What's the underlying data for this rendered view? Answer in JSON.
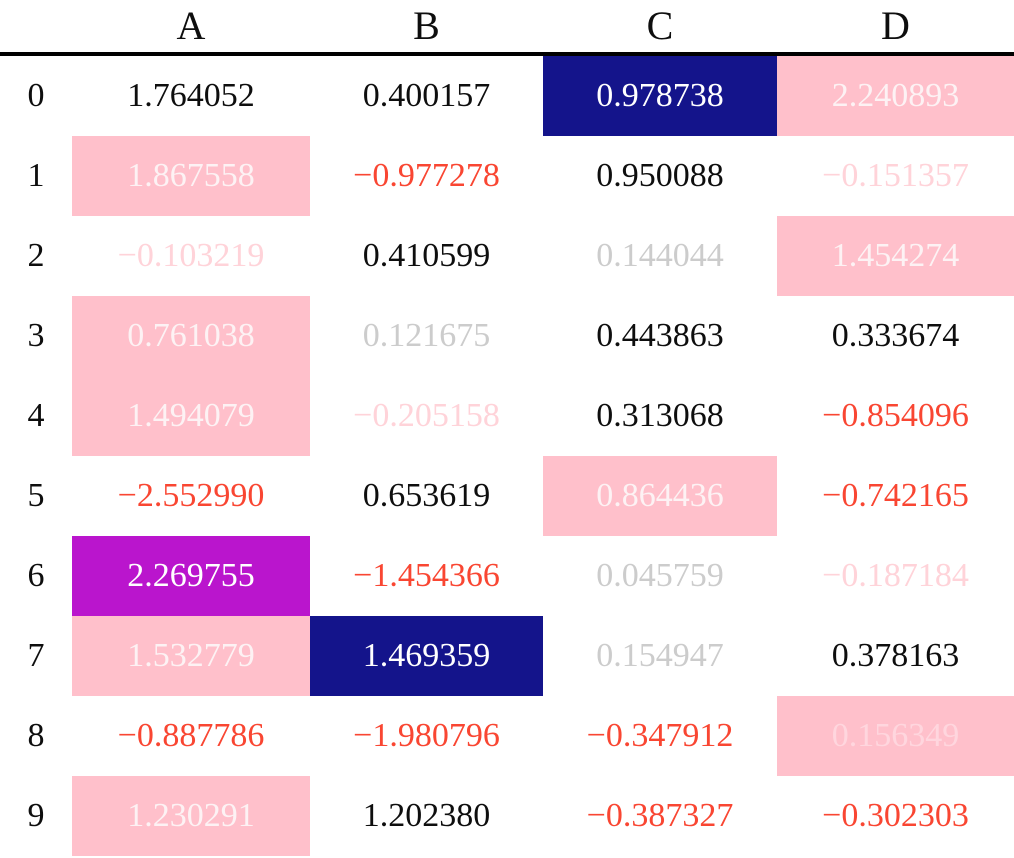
{
  "palette": {
    "black": "#0e0e0e",
    "red": "#f94632",
    "lightgray": "#cccccc",
    "lightpink": "#ffd3d9",
    "white": "#ffffff",
    "pinkwhite": "#fdf2f4",
    "fadedpink": "#ffd6de",
    "pink_bg": "#ffc0cb",
    "navy_bg": "#14148b",
    "magenta_bg": "#ba15cd",
    "rule": "#000000"
  },
  "chart_data": {
    "type": "table",
    "title": "",
    "columns": [
      "A",
      "B",
      "C",
      "D"
    ],
    "index": [
      "0",
      "1",
      "2",
      "3",
      "4",
      "5",
      "6",
      "7",
      "8",
      "9"
    ],
    "values": [
      [
        1.764052,
        0.400157,
        0.978738,
        2.240893
      ],
      [
        1.867558,
        -0.977278,
        0.950088,
        -0.151357
      ],
      [
        -0.103219,
        0.410599,
        0.144044,
        1.454274
      ],
      [
        0.761038,
        0.121675,
        0.443863,
        0.333674
      ],
      [
        1.494079,
        -0.205158,
        0.313068,
        -0.854096
      ],
      [
        -2.55299,
        0.653619,
        0.864436,
        -0.742165
      ],
      [
        2.269755,
        -1.454366,
        0.045759,
        -0.187184
      ],
      [
        1.532779,
        1.469359,
        0.154947,
        0.378163
      ],
      [
        -0.887786,
        -1.980796,
        -0.347912,
        0.156349
      ],
      [
        1.230291,
        1.20238,
        -0.387327,
        -0.302303
      ]
    ],
    "legend": "cell text color encodes sign/magnitude (red = strong negative, light pink = weak negative, light gray = weak positive, black = positive); cell background highlights (navy, magenta, pink) mark emphasized values"
  },
  "cells": [
    [
      {
        "text": "1.764052",
        "fg": "black",
        "bg": null
      },
      {
        "text": "0.400157",
        "fg": "black",
        "bg": null
      },
      {
        "text": "0.978738",
        "fg": "white",
        "bg": "navy_bg"
      },
      {
        "text": "2.240893",
        "fg": "pinkwhite",
        "bg": "pink_bg"
      }
    ],
    [
      {
        "text": "1.867558",
        "fg": "pinkwhite",
        "bg": "pink_bg"
      },
      {
        "text": "−0.977278",
        "fg": "red",
        "bg": null
      },
      {
        "text": "0.950088",
        "fg": "black",
        "bg": null
      },
      {
        "text": "−0.151357",
        "fg": "lightpink",
        "bg": null
      }
    ],
    [
      {
        "text": "−0.103219",
        "fg": "lightpink",
        "bg": null
      },
      {
        "text": "0.410599",
        "fg": "black",
        "bg": null
      },
      {
        "text": "0.144044",
        "fg": "lightgray",
        "bg": null
      },
      {
        "text": "1.454274",
        "fg": "pinkwhite",
        "bg": "pink_bg"
      }
    ],
    [
      {
        "text": "0.761038",
        "fg": "pinkwhite",
        "bg": "pink_bg"
      },
      {
        "text": "0.121675",
        "fg": "lightgray",
        "bg": null
      },
      {
        "text": "0.443863",
        "fg": "black",
        "bg": null
      },
      {
        "text": "0.333674",
        "fg": "black",
        "bg": null
      }
    ],
    [
      {
        "text": "1.494079",
        "fg": "pinkwhite",
        "bg": "pink_bg"
      },
      {
        "text": "−0.205158",
        "fg": "lightpink",
        "bg": null
      },
      {
        "text": "0.313068",
        "fg": "black",
        "bg": null
      },
      {
        "text": "−0.854096",
        "fg": "red",
        "bg": null
      }
    ],
    [
      {
        "text": "−2.552990",
        "fg": "red",
        "bg": null
      },
      {
        "text": "0.653619",
        "fg": "black",
        "bg": null
      },
      {
        "text": "0.864436",
        "fg": "pinkwhite",
        "bg": "pink_bg"
      },
      {
        "text": "−0.742165",
        "fg": "red",
        "bg": null
      }
    ],
    [
      {
        "text": "2.269755",
        "fg": "white",
        "bg": "magenta_bg"
      },
      {
        "text": "−1.454366",
        "fg": "red",
        "bg": null
      },
      {
        "text": "0.045759",
        "fg": "lightgray",
        "bg": null
      },
      {
        "text": "−0.187184",
        "fg": "lightpink",
        "bg": null
      }
    ],
    [
      {
        "text": "1.532779",
        "fg": "pinkwhite",
        "bg": "pink_bg"
      },
      {
        "text": "1.469359",
        "fg": "white",
        "bg": "navy_bg"
      },
      {
        "text": "0.154947",
        "fg": "lightgray",
        "bg": null
      },
      {
        "text": "0.378163",
        "fg": "black",
        "bg": null
      }
    ],
    [
      {
        "text": "−0.887786",
        "fg": "red",
        "bg": null
      },
      {
        "text": "−1.980796",
        "fg": "red",
        "bg": null
      },
      {
        "text": "−0.347912",
        "fg": "red",
        "bg": null
      },
      {
        "text": "0.156349",
        "fg": "fadedpink",
        "bg": "pink_bg"
      }
    ],
    [
      {
        "text": "1.230291",
        "fg": "pinkwhite",
        "bg": "pink_bg"
      },
      {
        "text": "1.202380",
        "fg": "black",
        "bg": null
      },
      {
        "text": "−0.387327",
        "fg": "red",
        "bg": null
      },
      {
        "text": "−0.302303",
        "fg": "red",
        "bg": null
      }
    ]
  ]
}
